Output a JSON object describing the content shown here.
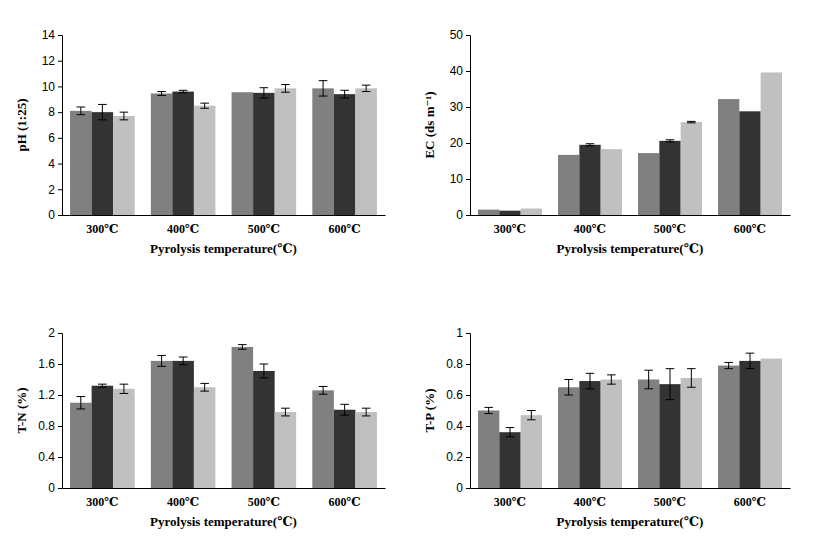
{
  "chart_data": [
    {
      "type": "bar",
      "x_label": "Pyrolysis temperature(℃)",
      "y_label": "pH (1:25)",
      "categories": [
        "300℃",
        "400℃",
        "500℃",
        "600℃"
      ],
      "series": [
        {
          "color": "#808080",
          "values": [
            8.1,
            9.45,
            9.55,
            9.85
          ],
          "errors": [
            0.3,
            0.15,
            null,
            0.6
          ]
        },
        {
          "color": "#333333",
          "values": [
            8.0,
            9.6,
            9.5,
            9.4
          ],
          "errors": [
            0.6,
            0.1,
            0.4,
            0.3
          ]
        },
        {
          "color": "#c0c0c0",
          "values": [
            7.7,
            8.5,
            9.85,
            9.85
          ],
          "errors": [
            0.3,
            0.2,
            0.3,
            0.25
          ]
        }
      ],
      "ylim": [
        0,
        14
      ],
      "yticks": [
        0,
        2,
        4,
        6,
        8,
        10,
        12,
        14
      ]
    },
    {
      "type": "bar",
      "x_label": "Pyrolysis temperature(℃)",
      "y_label": "EC (ds m⁻¹)",
      "categories": [
        "300℃",
        "400℃",
        "500℃",
        "600℃"
      ],
      "series": [
        {
          "color": "#808080",
          "values": [
            1.5,
            16.7,
            17.2,
            32.2
          ],
          "errors": [
            null,
            null,
            null,
            null
          ]
        },
        {
          "color": "#333333",
          "values": [
            1.2,
            19.5,
            20.6,
            28.8
          ],
          "errors": [
            null,
            0.3,
            0.3,
            null
          ]
        },
        {
          "color": "#c0c0c0",
          "values": [
            1.8,
            18.3,
            25.8,
            39.6
          ],
          "errors": [
            null,
            null,
            0.2,
            null
          ]
        }
      ],
      "ylim": [
        0,
        50
      ],
      "yticks": [
        0,
        10,
        20,
        30,
        40,
        50
      ]
    },
    {
      "type": "bar",
      "x_label": "Pyrolysis temperature(℃)",
      "y_label": "T-N (%)",
      "categories": [
        "300℃",
        "400℃",
        "500℃",
        "600℃"
      ],
      "series": [
        {
          "color": "#808080",
          "values": [
            1.1,
            1.64,
            1.82,
            1.26
          ],
          "errors": [
            0.08,
            0.07,
            0.03,
            0.05
          ]
        },
        {
          "color": "#333333",
          "values": [
            1.32,
            1.64,
            1.51,
            1.01
          ],
          "errors": [
            0.02,
            0.05,
            0.09,
            0.07
          ]
        },
        {
          "color": "#c0c0c0",
          "values": [
            1.28,
            1.3,
            0.98,
            0.98
          ],
          "errors": [
            0.06,
            0.05,
            0.05,
            0.05
          ]
        }
      ],
      "ylim": [
        0,
        2
      ],
      "yticks": [
        0,
        0.4,
        0.8,
        1.2,
        1.6,
        2
      ]
    },
    {
      "type": "bar",
      "x_label": "Pyrolysis temperature(℃)",
      "y_label": "T-P (%)",
      "categories": [
        "300℃",
        "400℃",
        "500℃",
        "600℃"
      ],
      "series": [
        {
          "color": "#808080",
          "values": [
            0.5,
            0.65,
            0.7,
            0.79
          ],
          "errors": [
            0.02,
            0.05,
            0.06,
            0.02
          ]
        },
        {
          "color": "#333333",
          "values": [
            0.36,
            0.69,
            0.67,
            0.82
          ],
          "errors": [
            0.03,
            0.05,
            0.1,
            0.05
          ]
        },
        {
          "color": "#c0c0c0",
          "values": [
            0.47,
            0.7,
            0.71,
            0.835
          ],
          "errors": [
            0.03,
            0.03,
            0.06,
            null
          ]
        }
      ],
      "ylim": [
        0,
        1
      ],
      "yticks": [
        0,
        0.2,
        0.4,
        0.6,
        0.8,
        1
      ]
    }
  ]
}
